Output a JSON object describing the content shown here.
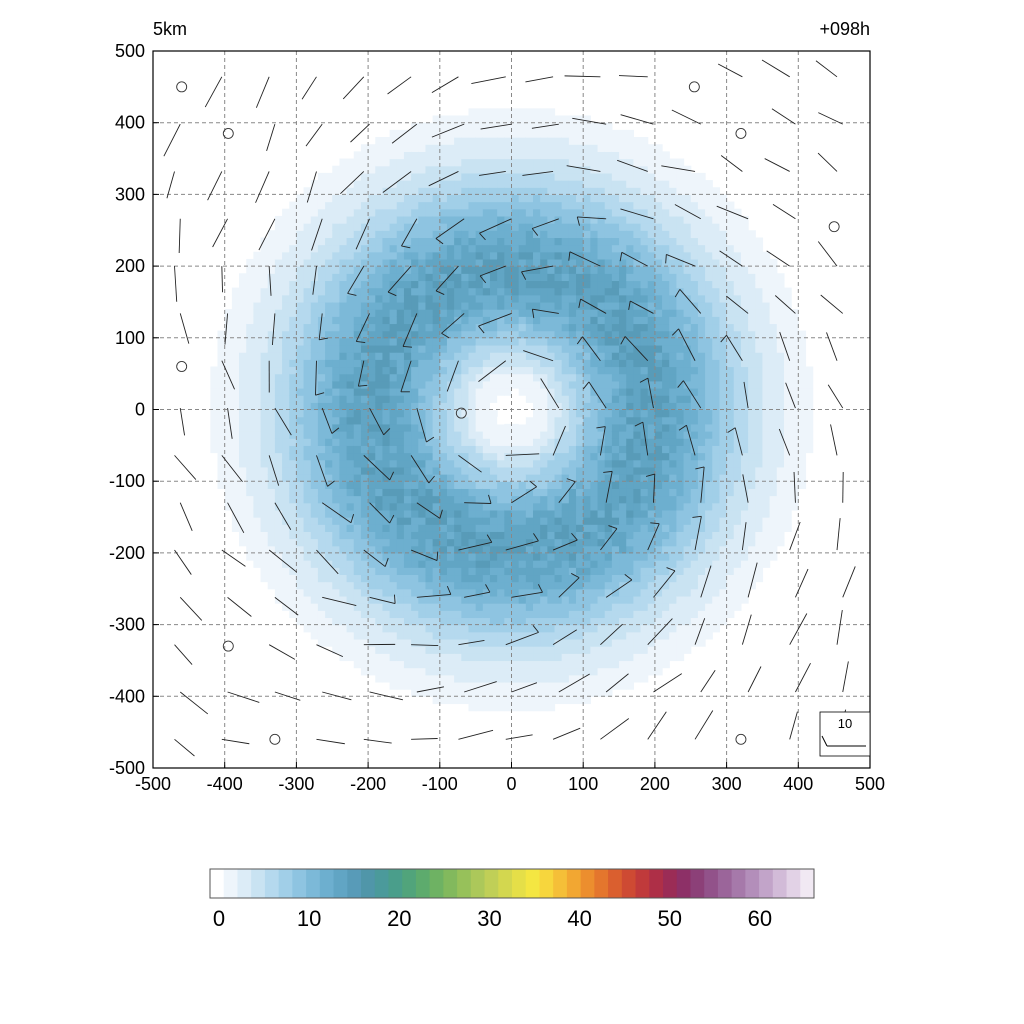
{
  "chart_data": {
    "type": "heatmap",
    "title_left": "5km",
    "title_right": "+098h",
    "xlim": [
      -500,
      500
    ],
    "ylim": [
      -500,
      500
    ],
    "x_ticks": [
      -500,
      -400,
      -300,
      -200,
      -100,
      0,
      100,
      200,
      300,
      400,
      500
    ],
    "y_ticks": [
      -500,
      -400,
      -300,
      -200,
      -100,
      0,
      100,
      200,
      300,
      400,
      500
    ],
    "grid": true,
    "field": {
      "description_units": "",
      "pattern": "annular ring",
      "center": [
        0,
        0
      ],
      "ring_radius": 190,
      "peak_value": 14,
      "ring_halfwidth_inner": 110,
      "ring_halfwidth_outer": 140,
      "outer_extent_radius": 420,
      "eye_radius": 70
    },
    "vector_reference": {
      "label": "10",
      "position": "bottom-right"
    },
    "calm_points": [
      [
        -460,
        450
      ],
      [
        -395,
        385
      ],
      [
        255,
        450
      ],
      [
        320,
        385
      ],
      [
        450,
        255
      ],
      [
        -460,
        60
      ],
      [
        -70,
        -5
      ],
      [
        -395,
        -330
      ],
      [
        -330,
        -460
      ],
      [
        320,
        -460
      ]
    ],
    "colorbar": {
      "ticks": [
        0,
        10,
        20,
        30,
        40,
        50,
        60
      ],
      "min": -1,
      "max": 66,
      "colors": [
        "#ffffff",
        "#eef5fb",
        "#dcecf7",
        "#c9e3f2",
        "#b5d9ee",
        "#a1cfe8",
        "#8ec4e1",
        "#7cb9d8",
        "#6dafcf",
        "#61a5c4",
        "#589bb8",
        "#5096a9",
        "#4b9a9b",
        "#4a9e8b",
        "#51a47b",
        "#5dab6d",
        "#6eb263",
        "#82b95d",
        "#97c15a",
        "#acc85a",
        "#c0cf57",
        "#d3d74f",
        "#e5df48",
        "#f4e642",
        "#f7d63d",
        "#f5bf38",
        "#f2a732",
        "#ec8e2e",
        "#e4762d",
        "#da5f2f",
        "#ce4a33",
        "#c03a3b",
        "#ae2f47",
        "#9b2c56",
        "#8d3067",
        "#8c4078",
        "#92528a",
        "#9b659a",
        "#a679aa",
        "#b38eba",
        "#c2a4c9",
        "#d2bbd8",
        "#e2d2e6",
        "#f1e9f3"
      ]
    }
  }
}
